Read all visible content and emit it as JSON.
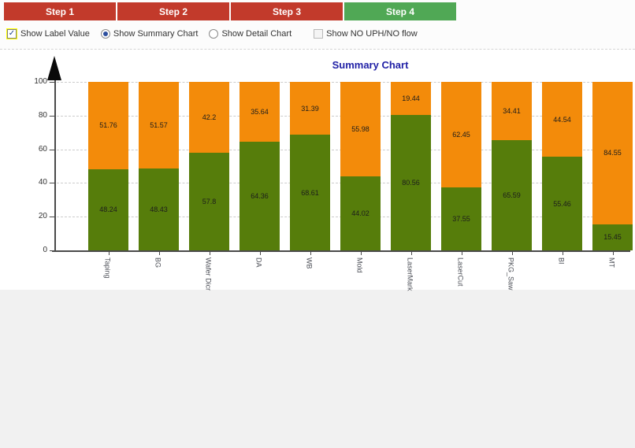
{
  "tabs": [
    {
      "label": "Step 1",
      "active": false
    },
    {
      "label": "Step 2",
      "active": false
    },
    {
      "label": "Step 3",
      "active": false
    },
    {
      "label": "Step 4",
      "active": true
    }
  ],
  "colors": {
    "tab_inactive": "#c23a2b",
    "tab_active": "#50a855",
    "bar_bottom": "#567d0b",
    "bar_top": "#f38b0a",
    "title": "#1f1fa5",
    "highlight": "#ffff00"
  },
  "options": {
    "show_label_value": {
      "label": "Show Label Value",
      "checked": true
    },
    "show_summary_chart": {
      "label": "Show Summary Chart",
      "selected": true
    },
    "show_detail_chart": {
      "label": "Show Detail Chart",
      "selected": false
    },
    "show_no_uph": {
      "label": "Show NO UPH/NO flow",
      "checked": false
    }
  },
  "chart_data": {
    "type": "bar",
    "stacked": true,
    "title": "Summary Chart",
    "categories": [
      "Taping",
      "BG",
      "Wafer Dicr",
      "DA",
      "WB",
      "Mold",
      "LaserMark",
      "LaserCut",
      "PKG_Saw",
      "BI",
      "MT"
    ],
    "series": [
      {
        "name": "bottom",
        "color": "#567d0b",
        "values": [
          48.24,
          48.43,
          57.8,
          64.36,
          68.61,
          44.02,
          80.56,
          37.55,
          65.59,
          55.46,
          15.45
        ]
      },
      {
        "name": "top",
        "color": "#f38b0a",
        "values": [
          51.76,
          51.57,
          42.2,
          35.64,
          31.39,
          55.98,
          19.44,
          62.45,
          34.41,
          44.54,
          84.55
        ]
      }
    ],
    "ylim": [
      0,
      100
    ],
    "yticks": [
      0,
      20,
      40,
      60,
      80,
      100
    ],
    "grid": true,
    "legend": false,
    "value_labels": true
  }
}
